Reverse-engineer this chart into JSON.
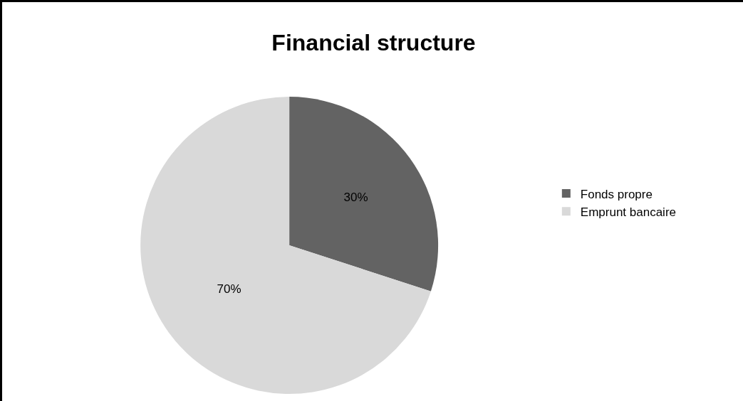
{
  "chart_data": {
    "type": "pie",
    "title": "Financial structure",
    "categories": [
      "Fonds propre",
      "Emprunt bancaire"
    ],
    "values": [
      30,
      70
    ],
    "colors": [
      "#636363",
      "#d9d9d9"
    ],
    "value_labels": [
      "30%",
      "70%"
    ],
    "legend": "right"
  }
}
